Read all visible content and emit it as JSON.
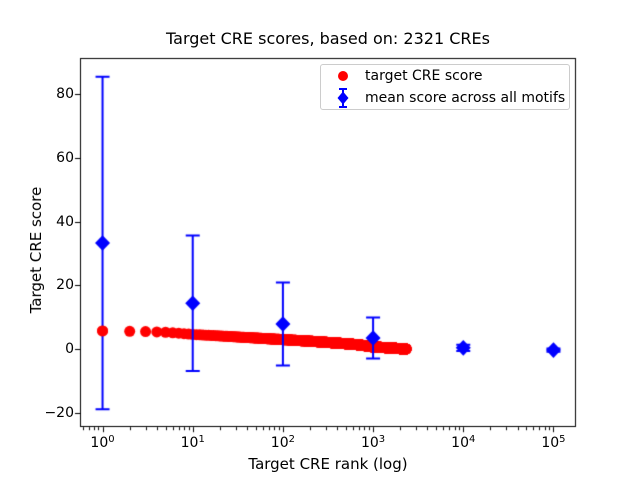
{
  "chart_data": {
    "type": "scatter",
    "title": "Target CRE scores, based on: 2321 CREs",
    "xlabel": "Target CRE rank (log)",
    "ylabel": "Target CRE score",
    "x_scale": "log",
    "grid": false,
    "xlim_log10": [
      -0.25,
      5.25
    ],
    "ylim": [
      -24.5,
      91.5
    ],
    "x_ticks": [
      1,
      10,
      100,
      1000,
      10000,
      100000
    ],
    "x_tick_base": "10",
    "x_tick_exponents": [
      "0",
      "1",
      "2",
      "3",
      "4",
      "5"
    ],
    "y_ticks": [
      -20,
      0,
      20,
      40,
      60,
      80
    ],
    "y_tick_labels": [
      "−20",
      "0",
      "20",
      "40",
      "60",
      "80"
    ],
    "legend_position": "upper right",
    "series": [
      {
        "name": "target CRE score",
        "color": "#ff0000",
        "marker": "circle",
        "marker_radius_px": 5.5,
        "n_points": 2321,
        "control_points": [
          [
            1,
            5.7
          ],
          [
            2,
            5.6
          ],
          [
            3,
            5.5
          ],
          [
            4,
            5.4
          ],
          [
            5,
            5.3
          ],
          [
            7,
            5.0
          ],
          [
            10,
            4.6
          ],
          [
            15,
            4.35
          ],
          [
            20,
            4.15
          ],
          [
            30,
            3.85
          ],
          [
            50,
            3.5
          ],
          [
            70,
            3.25
          ],
          [
            100,
            3.0
          ],
          [
            150,
            2.7
          ],
          [
            200,
            2.5
          ],
          [
            300,
            2.15
          ],
          [
            500,
            1.7
          ],
          [
            700,
            1.35
          ],
          [
            1000,
            0.7
          ],
          [
            1500,
            0.4
          ],
          [
            2000,
            0.15
          ],
          [
            2321,
            0.05
          ]
        ]
      },
      {
        "name": "mean score across all motifs",
        "color": "#0000ff",
        "marker": "diamond",
        "x": [
          1,
          10,
          100,
          1000,
          10000,
          100000
        ],
        "y": [
          33.3,
          14.4,
          7.9,
          3.5,
          0.4,
          -0.3
        ],
        "yerr": [
          52.2,
          21.3,
          13.0,
          6.4,
          1.0,
          0.5
        ]
      }
    ]
  }
}
